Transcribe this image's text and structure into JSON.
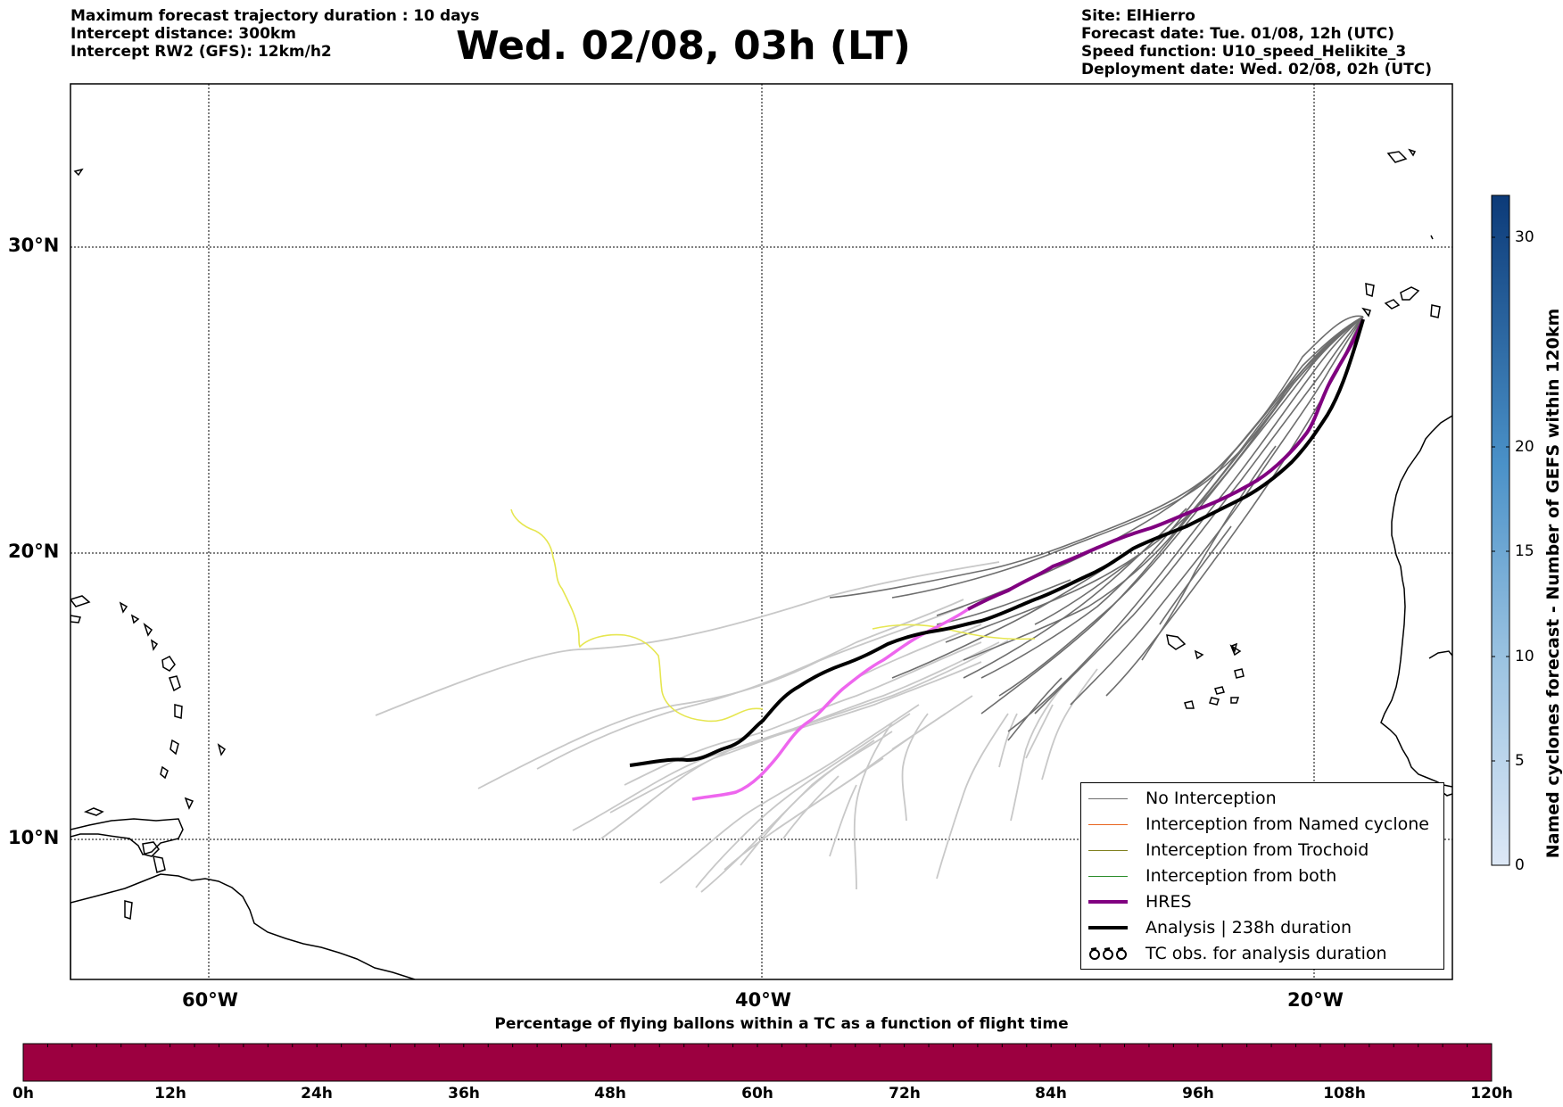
{
  "header": {
    "left_lines": [
      "Maximum forecast trajectory duration : 10 days",
      "Intercept distance: 300km",
      "Intercept RW2 (GFS):  12km/h2"
    ],
    "title": "Wed. 02/08, 03h (LT)",
    "right_lines": [
      "Site: ElHierro",
      "Forecast date: Tue. 01/08, 12h (UTC)",
      "Speed function: U10_speed_Helikite_3",
      "Deployment date: Wed. 02/08, 02h (UTC)"
    ]
  },
  "map": {
    "lat_labels": [
      "30°N",
      "20°N",
      "10°N"
    ],
    "lon_labels": [
      "60°W",
      "40°W",
      "20°W"
    ],
    "colors": {
      "no_interception": "#6e6e6e",
      "ensemble_light": "#c8c8c8",
      "named_cyclone": "#e8641e",
      "trochoid": "#808020",
      "both": "#2a8c2a",
      "hres": "#800080",
      "hres_light": "#ee66ee",
      "analysis": "#000000",
      "yellow_track": "#e6e650"
    }
  },
  "legend": {
    "items": [
      {
        "label": "No Interception",
        "icon": "line-gray"
      },
      {
        "label": "Interception from Named cyclone",
        "icon": "line-orange"
      },
      {
        "label": "Interception from Trochoid",
        "icon": "line-olive"
      },
      {
        "label": "Interception from both",
        "icon": "line-green"
      },
      {
        "label": "HRES",
        "icon": "line-purple-thick"
      },
      {
        "label": "Analysis | 238h duration",
        "icon": "line-black-thick"
      },
      {
        "label": "TC obs. for analysis duration",
        "icon": "cyclone-symbol-icon"
      }
    ]
  },
  "colorbar": {
    "title": "Named cyclones forecast - Number of GEFS within 120km",
    "ticks": [
      "0",
      "5",
      "10",
      "15",
      "20",
      "30"
    ]
  },
  "bottom_bar": {
    "title": "Percentage of flying ballons within a TC as a function of flight time",
    "color": "#9c0040",
    "ticks": [
      "0h",
      "12h",
      "24h",
      "36h",
      "48h",
      "60h",
      "72h",
      "84h",
      "96h",
      "108h",
      "120h"
    ]
  }
}
